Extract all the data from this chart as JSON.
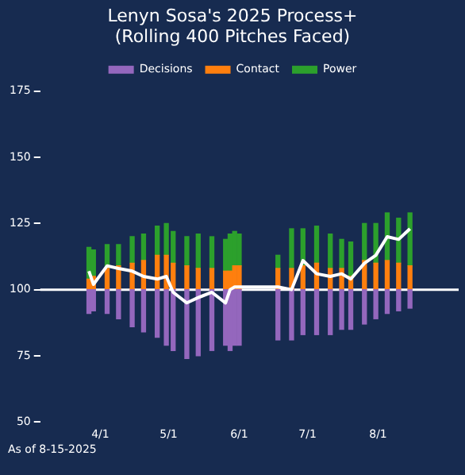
{
  "chart_data": {
    "type": "bar",
    "title": "Lenyn Sosa's 2025 Process+\n(Rolling 400 Pitches Faced)",
    "x": [
      "2025-03-27",
      "2025-03-29",
      "2025-04-04",
      "2025-04-09",
      "2025-04-15",
      "2025-04-20",
      "2025-04-26",
      "2025-04-30",
      "2025-05-03",
      "2025-05-09",
      "2025-05-14",
      "2025-05-20",
      "2025-05-26",
      "2025-05-28",
      "2025-05-30",
      "2025-06-01",
      "2025-06-18",
      "2025-06-24",
      "2025-06-29",
      "2025-07-05",
      "2025-07-11",
      "2025-07-16",
      "2025-07-20",
      "2025-07-26",
      "2025-07-31",
      "2025-08-05",
      "2025-08-10",
      "2025-08-15"
    ],
    "series": [
      {
        "name": "Decisions",
        "color": "#9467bd",
        "base": [
          100,
          100,
          100,
          100,
          100,
          100,
          100,
          100,
          100,
          100,
          100,
          100,
          100,
          100,
          100,
          100,
          100,
          100,
          100,
          100,
          100,
          100,
          100,
          100,
          100,
          100,
          100,
          100
        ],
        "values": [
          -9,
          -8,
          -9,
          -11,
          -14,
          -16,
          -18,
          -21,
          -23,
          -26,
          -25,
          -23,
          -21,
          -23,
          -21,
          -21,
          -19,
          -19,
          -17,
          -17,
          -17,
          -15,
          -15,
          -13,
          -11,
          -9,
          -8,
          -7
        ]
      },
      {
        "name": "Contact",
        "color": "#ff7f0e",
        "base": [
          100,
          100,
          100,
          100,
          100,
          100,
          100,
          100,
          100,
          100,
          100,
          100,
          100,
          100,
          100,
          100,
          100,
          100,
          100,
          100,
          100,
          100,
          100,
          100,
          100,
          100,
          100,
          100
        ],
        "values": [
          4,
          5,
          8,
          9,
          10,
          11,
          13,
          13,
          10,
          9,
          8,
          8,
          7,
          7,
          9,
          9,
          8,
          8,
          9,
          10,
          8,
          8,
          5,
          11,
          10,
          11,
          10,
          9
        ]
      },
      {
        "name": "Power",
        "color": "#2ca02c",
        "base": [
          104,
          105,
          108,
          109,
          110,
          111,
          113,
          113,
          110,
          109,
          108,
          108,
          107,
          107,
          109,
          109,
          108,
          108,
          109,
          110,
          108,
          108,
          105,
          111,
          110,
          111,
          110,
          109
        ],
        "values": [
          12,
          10,
          9,
          8,
          10,
          10,
          11,
          12,
          12,
          11,
          13,
          12,
          12,
          14,
          13,
          12,
          5,
          15,
          14,
          14,
          13,
          11,
          13,
          14,
          15,
          18,
          17,
          20
        ]
      },
      {
        "type": "line",
        "color": "#ffffff",
        "values": [
          107,
          102,
          109,
          108,
          107,
          105,
          104,
          105,
          99,
          95,
          97,
          99,
          95,
          100,
          101,
          101,
          101,
          100,
          111,
          106,
          105,
          106,
          104,
          110,
          113,
          120,
          119,
          123
        ]
      }
    ],
    "xlim": [
      "2025-03-24",
      "2025-08-18"
    ],
    "xticks": [
      {
        "value": "2025-04-01",
        "label": "4/1"
      },
      {
        "value": "2025-05-01",
        "label": "5/1"
      },
      {
        "value": "2025-06-01",
        "label": "6/1"
      },
      {
        "value": "2025-07-01",
        "label": "7/1"
      },
      {
        "value": "2025-08-01",
        "label": "8/1"
      }
    ],
    "ylim": [
      50,
      175
    ],
    "yticks": [
      50,
      75,
      100,
      125,
      150,
      175
    ],
    "ref_lines": [
      {
        "axis": "y",
        "value": 100,
        "color": "#ffffff"
      }
    ],
    "legend": "top",
    "annotations": [
      "As of 8-15-2025"
    ]
  }
}
